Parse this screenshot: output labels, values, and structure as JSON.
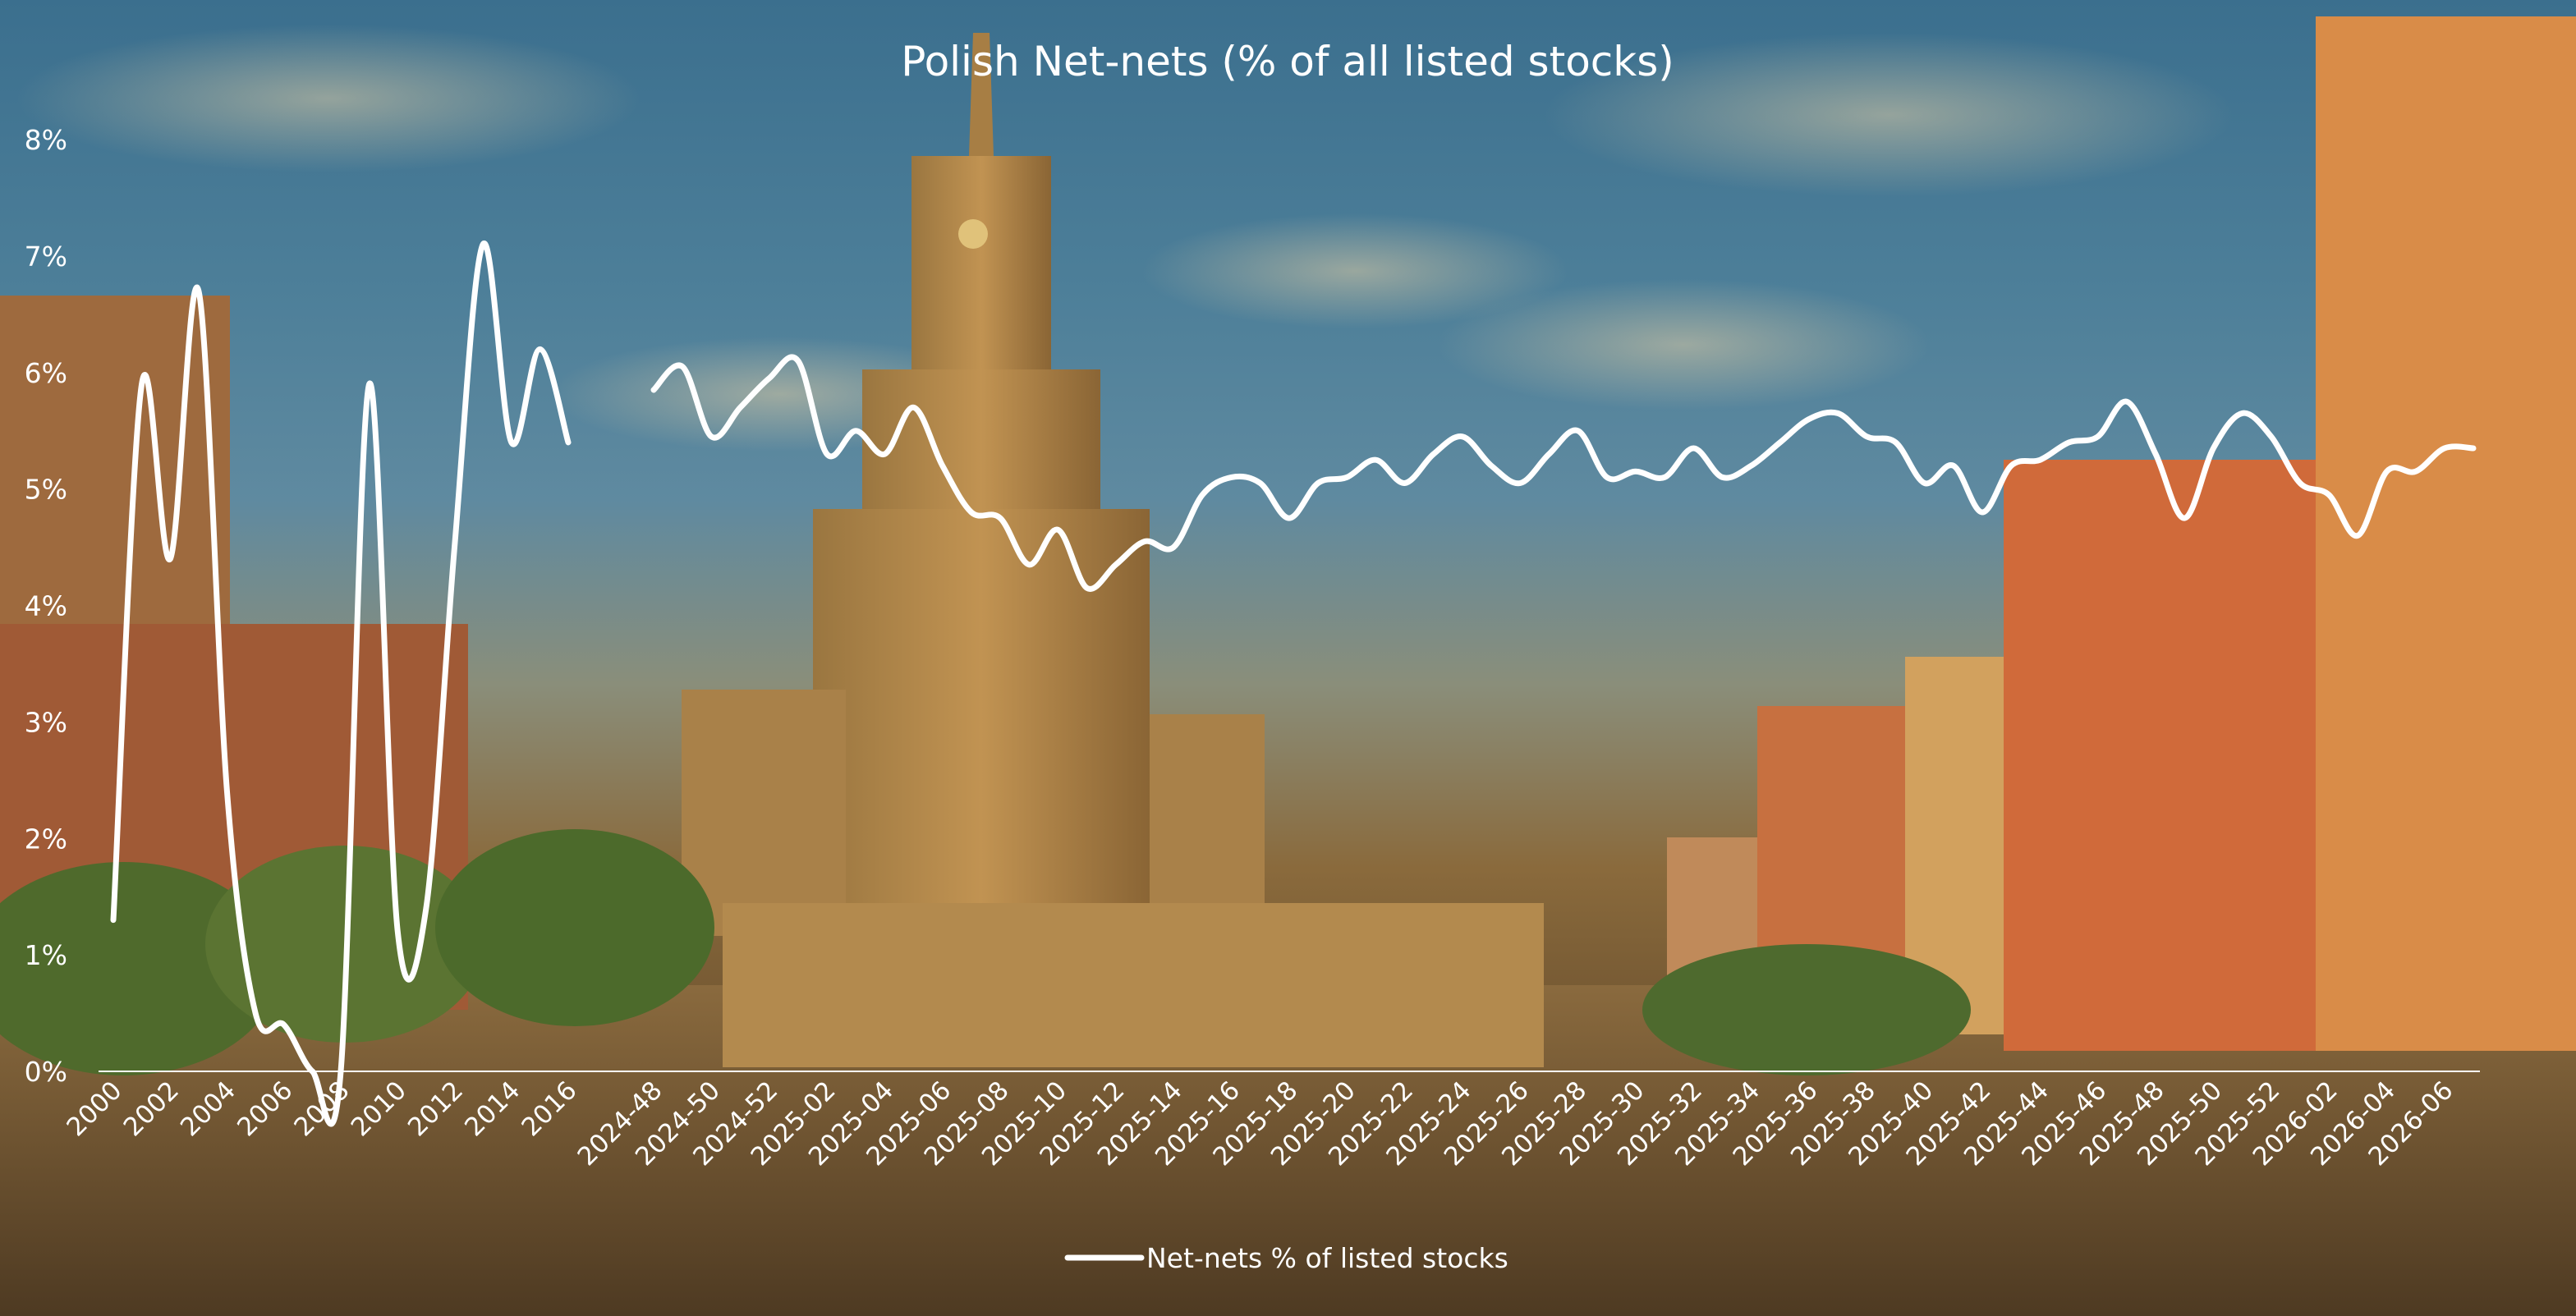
{
  "chart_data": {
    "type": "line",
    "title": "Polish Net-nets (% of all listed stocks)",
    "xlabel": "",
    "ylabel": "",
    "ylim": [
      0,
      8
    ],
    "yticks": [
      "0%",
      "1%",
      "2%",
      "3%",
      "4%",
      "5%",
      "6%",
      "7%",
      "8%"
    ],
    "grid": false,
    "legend_position": "bottom-center",
    "line_color": "#ffffff",
    "series": [
      {
        "name": "Net-nets % of listed stocks",
        "segments": [
          {
            "tick_step": 2,
            "x": [
              "2000",
              "2001",
              "2002",
              "2003",
              "2004",
              "2005",
              "2006",
              "2007",
              "2008",
              "2009",
              "2010",
              "2011",
              "2012",
              "2013",
              "2014",
              "2015",
              "2016"
            ],
            "values": [
              1.3,
              5.9,
              4.4,
              6.7,
              2.4,
              0.5,
              0.4,
              0.0,
              0.0,
              5.9,
              1.2,
              1.4,
              4.5,
              7.1,
              5.4,
              6.2,
              5.4
            ]
          },
          {
            "tick_step": 2,
            "x": [
              "2024-48",
              "2024-49",
              "2024-50",
              "2024-51",
              "2024-52",
              "2025-01",
              "2025-02",
              "2025-03",
              "2025-04",
              "2025-05",
              "2025-06",
              "2025-07",
              "2025-08",
              "2025-09",
              "2025-10",
              "2025-11",
              "2025-12",
              "2025-13",
              "2025-14",
              "2025-15",
              "2025-16",
              "2025-17",
              "2025-18",
              "2025-19",
              "2025-20",
              "2025-21",
              "2025-22",
              "2025-23",
              "2025-24",
              "2025-25",
              "2025-26",
              "2025-27",
              "2025-28",
              "2025-29",
              "2025-30",
              "2025-31",
              "2025-32",
              "2025-33",
              "2025-34",
              "2025-35",
              "2025-36",
              "2025-37",
              "2025-38",
              "2025-39",
              "2025-40",
              "2025-41",
              "2025-42",
              "2025-43",
              "2025-44",
              "2025-45",
              "2025-46",
              "2025-47",
              "2025-48",
              "2025-49",
              "2025-50",
              "2025-51",
              "2025-52",
              "2026-01",
              "2026-02",
              "2026-03",
              "2026-04",
              "2026-05",
              "2026-06",
              "2026-07"
            ],
            "values": [
              5.85,
              6.05,
              5.45,
              5.7,
              5.95,
              6.1,
              5.3,
              5.5,
              5.3,
              5.7,
              5.2,
              4.8,
              4.75,
              4.35,
              4.65,
              4.15,
              4.35,
              4.55,
              4.5,
              4.95,
              5.1,
              5.05,
              4.75,
              5.05,
              5.1,
              5.25,
              5.05,
              5.3,
              5.45,
              5.2,
              5.05,
              5.3,
              5.5,
              5.1,
              5.15,
              5.1,
              5.35,
              5.1,
              5.2,
              5.4,
              5.6,
              5.65,
              5.45,
              5.4,
              5.05,
              5.2,
              4.8,
              5.2,
              5.25,
              5.4,
              5.45,
              5.75,
              5.3,
              4.75,
              5.35,
              5.65,
              5.45,
              5.05,
              4.95,
              4.6,
              5.15,
              5.15,
              5.35,
              5.35
            ]
          }
        ]
      }
    ]
  }
}
